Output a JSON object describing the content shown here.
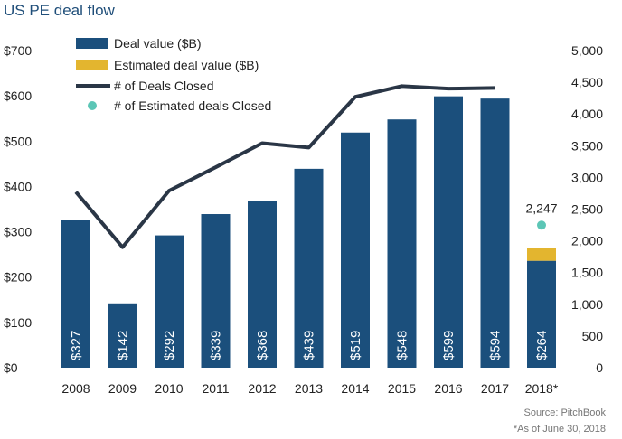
{
  "title": "US PE deal flow",
  "source": "Source: PitchBook",
  "footnote": "*As of June 30, 2018",
  "colors": {
    "deal_value": "#1b4f7c",
    "estimated_value": "#e3b52f",
    "deals_line": "#2a3646",
    "estimated_deals": "#5cc6b6"
  },
  "chart_data": {
    "type": "bar",
    "categories": [
      "2008",
      "2009",
      "2010",
      "2011",
      "2012",
      "2013",
      "2014",
      "2015",
      "2016",
      "2017",
      "2018*"
    ],
    "series": [
      {
        "name": "Deal value ($B)",
        "kind": "bar",
        "values": [
          327,
          142,
          292,
          339,
          368,
          439,
          519,
          548,
          599,
          594,
          236
        ]
      },
      {
        "name": "Estimated deal value ($B)",
        "kind": "bar-stacked",
        "values": [
          0,
          0,
          0,
          0,
          0,
          0,
          0,
          0,
          0,
          0,
          28
        ]
      },
      {
        "name": "# of Deals Closed",
        "kind": "line",
        "axis": "right",
        "values": [
          2770,
          1900,
          2790,
          3160,
          3540,
          3470,
          4270,
          4440,
          4400,
          4410,
          null
        ]
      },
      {
        "name": "# of Estimated deals Closed",
        "kind": "point",
        "axis": "right",
        "values": [
          null,
          null,
          null,
          null,
          null,
          null,
          null,
          null,
          null,
          null,
          2247
        ]
      }
    ],
    "bar_labels": [
      "$327",
      "$142",
      "$292",
      "$339",
      "$368",
      "$439",
      "$519",
      "$548",
      "$599",
      "$594",
      "$264"
    ],
    "point_label": "2,247",
    "left_axis": {
      "ylim": [
        0,
        700
      ],
      "ticks": [
        0,
        100,
        200,
        300,
        400,
        500,
        600,
        700
      ],
      "tick_labels": [
        "$0",
        "$100",
        "$200",
        "$300",
        "$400",
        "$500",
        "$600",
        "$700"
      ]
    },
    "right_axis": {
      "ylim": [
        0,
        5000
      ],
      "ticks": [
        0,
        500,
        1000,
        1500,
        2000,
        2500,
        3000,
        3500,
        4000,
        4500,
        5000
      ],
      "tick_labels": [
        "0",
        "500",
        "1,000",
        "1,500",
        "2,000",
        "2,500",
        "3,000",
        "3,500",
        "4,000",
        "4,500",
        "5,000"
      ]
    },
    "legend": [
      "Deal value ($B)",
      "Estimated deal value ($B)",
      "# of Deals Closed",
      "# of Estimated deals Closed"
    ],
    "legend_position": "top-left"
  }
}
